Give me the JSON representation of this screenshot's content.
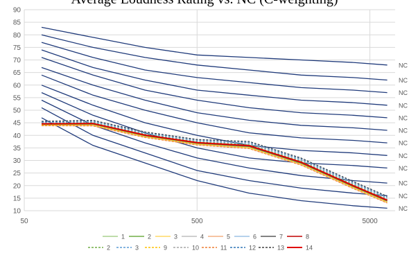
{
  "chart_data": {
    "type": "line",
    "title": "Average Loudness Rating vs. NC (C-weighting)",
    "x_scale": "log",
    "xlim": [
      50,
      7000
    ],
    "ylim": [
      10,
      90
    ],
    "x_ticks": [
      50,
      500,
      5000
    ],
    "y_ticks": [
      10,
      15,
      20,
      25,
      30,
      35,
      40,
      45,
      50,
      55,
      60,
      65,
      70,
      75,
      80,
      85,
      90
    ],
    "grid": true,
    "legend_position": "bottom",
    "colors": {
      "nc_curve": "#1f3a7a",
      "grid": "#d9d9d9",
      "axis_text": "#595959"
    },
    "nc_x": [
      63,
      125,
      250,
      500,
      1000,
      2000,
      4000,
      6300
    ],
    "nc_curves": [
      {
        "label": "NC",
        "values": [
          47,
          36,
          29,
          22,
          17,
          14,
          12,
          11
        ]
      },
      {
        "label": "NC",
        "values": [
          51,
          40,
          33,
          26,
          22,
          19,
          17,
          16
        ]
      },
      {
        "label": "NC",
        "values": [
          54,
          44,
          37,
          31,
          27,
          24,
          22,
          21
        ]
      },
      {
        "label": "NC",
        "values": [
          57,
          48,
          41,
          35,
          31,
          29,
          28,
          27
        ]
      },
      {
        "label": "NC",
        "values": [
          60,
          52,
          45,
          40,
          36,
          34,
          33,
          32
        ]
      },
      {
        "label": "NC",
        "values": [
          64,
          56,
          50,
          45,
          41,
          39,
          38,
          37
        ]
      },
      {
        "label": "NC",
        "values": [
          67,
          60,
          54,
          49,
          46,
          44,
          43,
          42
        ]
      },
      {
        "label": "NC",
        "values": [
          71,
          64,
          58,
          54,
          51,
          49,
          48,
          47
        ]
      },
      {
        "label": "NC",
        "values": [
          74,
          67,
          62,
          58,
          56,
          54,
          53,
          52
        ]
      },
      {
        "label": "NC",
        "values": [
          77,
          71,
          66,
          63,
          61,
          59,
          58,
          57
        ]
      },
      {
        "label": "NC",
        "values": [
          80,
          75,
          71,
          68,
          66,
          64,
          63,
          62
        ]
      },
      {
        "label": "NC",
        "values": [
          83,
          79,
          75,
          72,
          71,
          70,
          69,
          68
        ]
      }
    ],
    "series_x": [
      63,
      125,
      250,
      500,
      1000,
      2000,
      4000,
      6300
    ],
    "series": [
      {
        "name": "1",
        "color": "#a9d18e",
        "dash": "solid",
        "values": [
          44.2,
          44.2,
          39.6,
          36.6,
          35.3,
          28.7,
          19.4,
          13.6
        ]
      },
      {
        "name": "2",
        "color": "#70ad47",
        "dash": "solid",
        "values": [
          44.3,
          44.4,
          39.8,
          36.8,
          35.5,
          28.9,
          19.6,
          13.8
        ]
      },
      {
        "name": "3",
        "color": "#ffd966",
        "dash": "solid",
        "values": [
          44.0,
          44.0,
          39.4,
          36.4,
          35.0,
          28.4,
          19.1,
          13.3
        ]
      },
      {
        "name": "4",
        "color": "#bfbfbf",
        "dash": "solid",
        "values": [
          44.5,
          44.6,
          40.0,
          37.0,
          35.8,
          29.2,
          19.9,
          14.1
        ]
      },
      {
        "name": "5",
        "color": "#f4b183",
        "dash": "solid",
        "values": [
          43.9,
          43.8,
          39.2,
          36.2,
          34.8,
          28.2,
          18.9,
          13.1
        ]
      },
      {
        "name": "6",
        "color": "#9dc3e6",
        "dash": "solid",
        "values": [
          44.6,
          44.7,
          40.1,
          37.1,
          35.9,
          29.3,
          20.0,
          14.2
        ]
      },
      {
        "name": "7",
        "color": "#595959",
        "dash": "solid",
        "values": [
          44.4,
          44.5,
          39.9,
          36.9,
          35.6,
          29.0,
          19.7,
          13.9
        ]
      },
      {
        "name": "8",
        "color": "#c00000",
        "dash": "solid",
        "values": [
          44.7,
          44.8,
          40.2,
          37.2,
          36.0,
          29.4,
          20.1,
          14.3
        ]
      },
      {
        "name": "2",
        "color": "#70ad47",
        "dash": "dashed",
        "values": [
          44.8,
          45.0,
          40.4,
          37.4,
          36.3,
          29.7,
          20.4,
          14.5
        ]
      },
      {
        "name": "3",
        "color": "#5b9bd5",
        "dash": "dashed",
        "values": [
          45.1,
          45.3,
          40.7,
          37.7,
          36.7,
          30.1,
          20.8,
          14.9
        ]
      },
      {
        "name": "9",
        "color": "#ffc000",
        "dash": "dashed",
        "values": [
          44.1,
          44.1,
          39.5,
          36.5,
          35.2,
          28.6,
          19.3,
          13.5
        ]
      },
      {
        "name": "10",
        "color": "#a5a5a5",
        "dash": "dashed",
        "values": [
          45.3,
          45.6,
          41.0,
          38.0,
          37.0,
          30.4,
          21.1,
          15.2
        ]
      },
      {
        "name": "11",
        "color": "#ed7d31",
        "dash": "dashed",
        "values": [
          43.8,
          43.7,
          39.1,
          36.1,
          34.7,
          28.1,
          18.8,
          13.0
        ]
      },
      {
        "name": "12",
        "color": "#2e75b6",
        "dash": "dashed",
        "values": [
          45.4,
          45.8,
          41.2,
          38.2,
          37.3,
          30.7,
          21.4,
          15.5
        ]
      },
      {
        "name": "13",
        "color": "#404040",
        "dash": "dashed",
        "values": [
          45.6,
          46.0,
          41.4,
          38.4,
          37.6,
          31.0,
          21.7,
          15.8
        ]
      },
      {
        "name": "14",
        "color": "#e00000",
        "dash": "solid-thick",
        "values": [
          44.6,
          44.7,
          40.1,
          37.1,
          35.9,
          29.3,
          20.0,
          14.2
        ]
      }
    ]
  }
}
